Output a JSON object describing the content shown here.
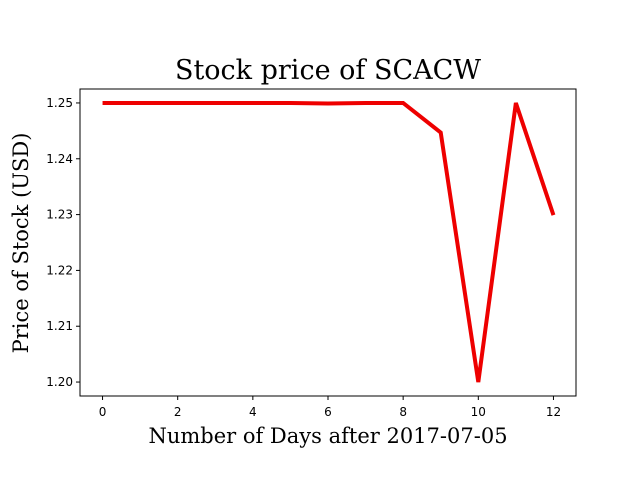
{
  "chart_data": {
    "type": "line",
    "title": "Stock price of SCACW",
    "xlabel": "Number of Days after 2017-07-05",
    "ylabel": "Price of Stock (USD)",
    "xlim": [
      -0.6,
      12.6
    ],
    "ylim": [
      1.1975,
      1.2525
    ],
    "x_ticks": [
      0,
      2,
      4,
      6,
      8,
      10,
      12
    ],
    "x_tick_labels": [
      "0",
      "2",
      "4",
      "6",
      "8",
      "10",
      "12"
    ],
    "y_ticks": [
      1.2,
      1.21,
      1.22,
      1.23,
      1.24,
      1.25
    ],
    "y_tick_labels": [
      "1.20",
      "1.21",
      "1.22",
      "1.23",
      "1.24",
      "1.25"
    ],
    "grid": false,
    "series": [
      {
        "color": "#ee0000",
        "x": [
          0,
          1,
          2,
          3,
          4,
          5,
          6,
          7,
          8,
          9,
          10,
          11,
          12
        ],
        "y": [
          1.25,
          1.25,
          1.25,
          1.25,
          1.25,
          1.25,
          1.2499,
          1.25,
          1.25,
          1.2447,
          1.2,
          1.25,
          1.2299
        ]
      }
    ]
  }
}
